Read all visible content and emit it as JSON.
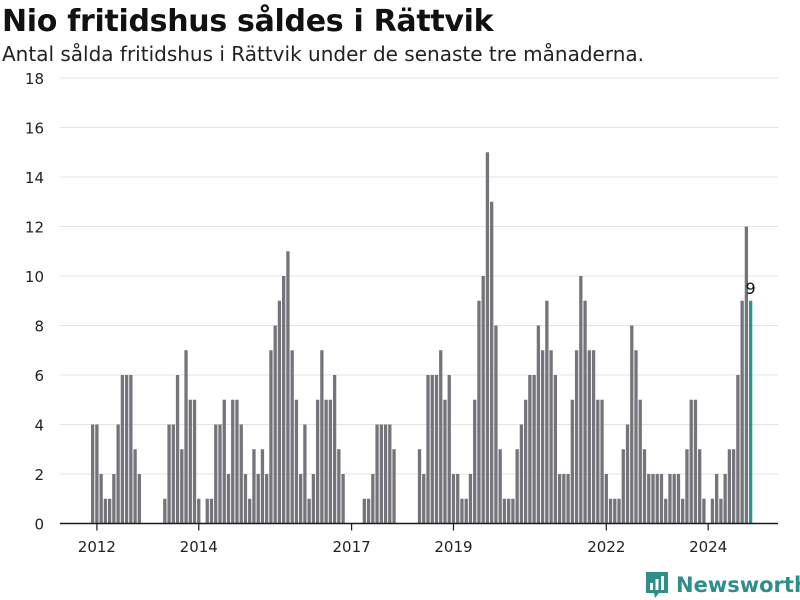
{
  "title": "Nio fritidshus såldes i Rättvik",
  "subtitle": "Antal sålda fritidshus i Rättvik under de senaste tre månaderna.",
  "brand": {
    "name": "Newsworthy"
  },
  "colors": {
    "bar": "#75747a",
    "highlight": "#2b958f",
    "grid": "#e3e3e3",
    "axis": "#1a1a1a",
    "brand": "#2d8f8a"
  },
  "chart_data": {
    "type": "bar",
    "ylim": [
      0,
      18
    ],
    "yticks": [
      0,
      2,
      4,
      6,
      8,
      10,
      12,
      14,
      16,
      18
    ],
    "xtick_labels": [
      "2012",
      "2014",
      "2017",
      "2019",
      "2022",
      "2024"
    ],
    "xtick_index": [
      1,
      25,
      61,
      85,
      121,
      145
    ],
    "highlight_label": "9",
    "values": [
      4,
      4,
      2,
      1,
      1,
      2,
      4,
      6,
      6,
      6,
      3,
      2,
      0,
      0,
      0,
      0,
      0,
      1,
      4,
      4,
      6,
      3,
      7,
      5,
      5,
      1,
      0,
      1,
      1,
      4,
      4,
      5,
      2,
      5,
      5,
      4,
      2,
      1,
      3,
      2,
      3,
      2,
      7,
      8,
      9,
      10,
      11,
      7,
      5,
      2,
      4,
      1,
      2,
      5,
      7,
      5,
      5,
      6,
      3,
      2,
      0,
      0,
      0,
      0,
      1,
      1,
      2,
      4,
      4,
      4,
      4,
      3,
      0,
      0,
      0,
      0,
      0,
      3,
      2,
      6,
      6,
      6,
      7,
      5,
      6,
      2,
      2,
      1,
      1,
      2,
      5,
      9,
      10,
      15,
      13,
      8,
      3,
      1,
      1,
      1,
      3,
      4,
      5,
      6,
      6,
      8,
      7,
      9,
      7,
      6,
      2,
      2,
      2,
      5,
      7,
      10,
      9,
      7,
      7,
      5,
      5,
      2,
      1,
      1,
      1,
      3,
      4,
      8,
      7,
      5,
      3,
      2,
      2,
      2,
      2,
      1,
      2,
      2,
      2,
      1,
      3,
      5,
      5,
      3,
      1,
      0,
      1,
      2,
      1,
      2,
      3,
      3,
      6,
      9,
      12,
      9
    ]
  }
}
